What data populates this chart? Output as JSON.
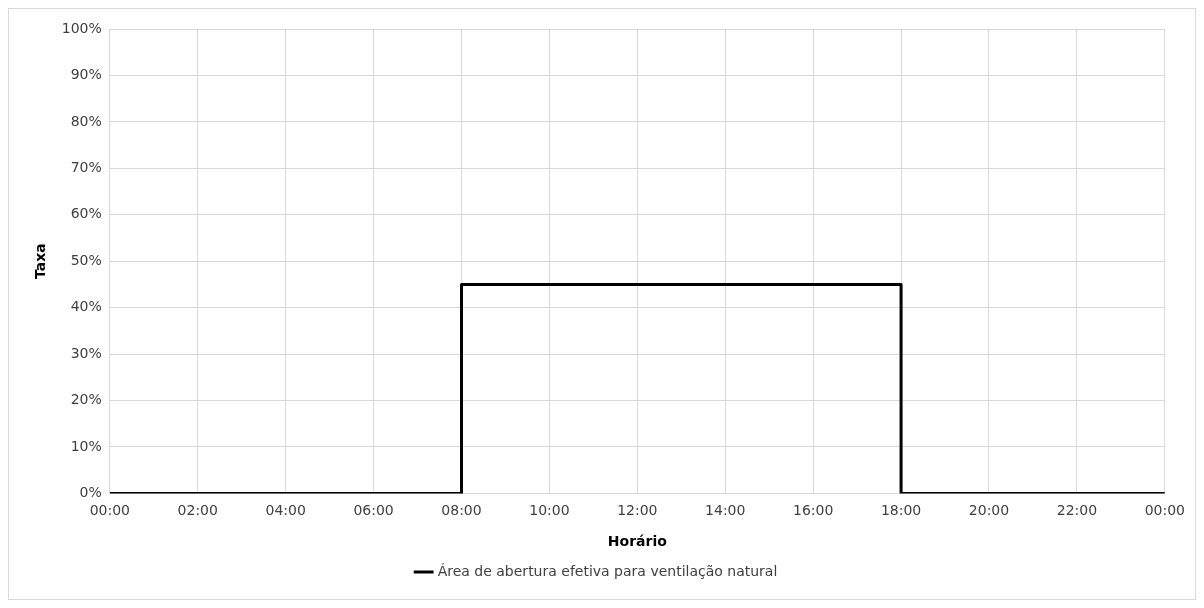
{
  "chart_data": {
    "type": "step",
    "xlabel": "Horário",
    "ylabel": "Taxa",
    "x": [
      0,
      8,
      18,
      24
    ],
    "series": [
      {
        "name": "Área de abertura efetiva para ventilação natural",
        "color": "#000000",
        "values": [
          0,
          45,
          0,
          0
        ]
      }
    ],
    "xlim": [
      0,
      24
    ],
    "xticks": [
      {
        "value": 0,
        "label": "00:00"
      },
      {
        "value": 2,
        "label": "02:00"
      },
      {
        "value": 4,
        "label": "04:00"
      },
      {
        "value": 6,
        "label": "06:00"
      },
      {
        "value": 8,
        "label": "08:00"
      },
      {
        "value": 10,
        "label": "10:00"
      },
      {
        "value": 12,
        "label": "12:00"
      },
      {
        "value": 14,
        "label": "14:00"
      },
      {
        "value": 16,
        "label": "16:00"
      },
      {
        "value": 18,
        "label": "18:00"
      },
      {
        "value": 20,
        "label": "20:00"
      },
      {
        "value": 22,
        "label": "22:00"
      },
      {
        "value": 24,
        "label": "00:00"
      }
    ],
    "ylim": [
      0,
      100
    ],
    "yticks": [
      {
        "value": 0,
        "label": "0%"
      },
      {
        "value": 10,
        "label": "10%"
      },
      {
        "value": 20,
        "label": "20%"
      },
      {
        "value": 30,
        "label": "30%"
      },
      {
        "value": 40,
        "label": "40%"
      },
      {
        "value": 50,
        "label": "50%"
      },
      {
        "value": 60,
        "label": "60%"
      },
      {
        "value": 70,
        "label": "70%"
      },
      {
        "value": 80,
        "label": "80%"
      },
      {
        "value": 90,
        "label": "90%"
      },
      {
        "value": 100,
        "label": "100%"
      }
    ],
    "grid": true,
    "legend": "bottom"
  }
}
